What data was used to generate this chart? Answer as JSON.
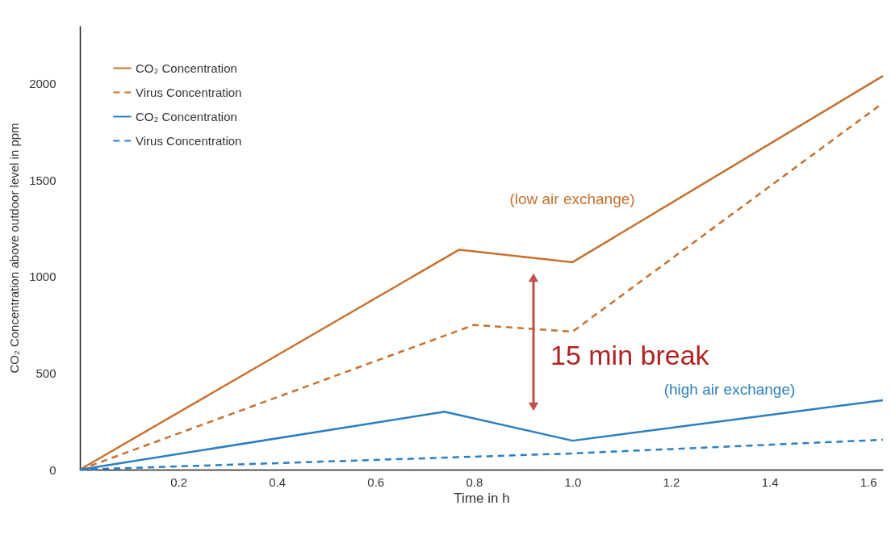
{
  "chart_data": {
    "type": "line",
    "xlabel": "Time in h",
    "ylabel": "CO₂ Concentration above  outdoor level in ppm",
    "xlim": [
      0,
      1.63
    ],
    "xticks": [
      0.2,
      0.4,
      0.6,
      0.8,
      {
        "value": 1.0,
        "label": "1.0"
      },
      1.2,
      1.4,
      1.6
    ],
    "ylim": [
      0,
      2300
    ],
    "yticks": [
      0,
      500,
      1000,
      1500,
      2000
    ],
    "grid": false,
    "legend": "top left",
    "marker": "none",
    "series": [
      {
        "name": "CO₂ Concentration",
        "color": "#c8702e",
        "line_style": "solid",
        "x": [
          0,
          0.77,
          1.0,
          1.63
        ],
        "values": [
          0,
          1140,
          1075,
          2040
        ]
      },
      {
        "name": "Virus Concentration",
        "color": "#c8702e",
        "line_style": "dashed",
        "x": [
          0,
          0.8,
          1.0,
          1.63
        ],
        "values": [
          0,
          750,
          715,
          1900
        ]
      },
      {
        "name": "CO₂ Concentration",
        "color": "#2a7fc1",
        "line_style": "solid",
        "x": [
          0,
          0.74,
          1.0,
          1.63
        ],
        "values": [
          0,
          300,
          150,
          360
        ]
      },
      {
        "name": "Virus Concentration",
        "color": "#2a7fc1",
        "line_style": "dashed",
        "x": [
          0,
          0.5,
          1.0,
          1.63
        ],
        "values": [
          0,
          42,
          84,
          155
        ]
      }
    ],
    "annotations": [
      "(low air exchange)",
      "(high air exchange)",
      "15 min break"
    ]
  }
}
